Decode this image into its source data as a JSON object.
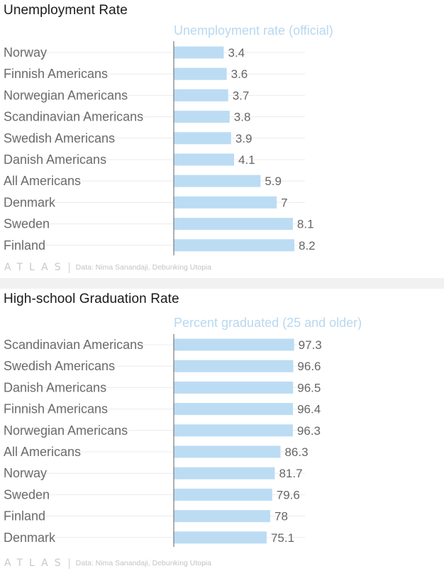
{
  "colors": {
    "bar": "#bcdcf4",
    "axis": "#7a7a7a",
    "grid": "#ececec",
    "label": "#6b6b6b",
    "value": "#666666",
    "series": "#b8d8f0"
  },
  "footer": {
    "logo": "ATLAS",
    "source": "Data: Nima Sanandaji, Debunking Utopia"
  },
  "chart_data": [
    {
      "type": "bar",
      "orientation": "horizontal",
      "title": "Unemployment Rate",
      "series": [
        {
          "name": "Unemployment rate (official)",
          "values": [
            3.4,
            3.6,
            3.7,
            3.8,
            3.9,
            4.1,
            5.9,
            7,
            8.1,
            8.2
          ],
          "value_labels": [
            "3.4",
            "3.6",
            "3.7",
            "3.8",
            "3.9",
            "4.1",
            "5.9",
            "7",
            "8.1",
            "8.2"
          ]
        }
      ],
      "categories": [
        "Norway",
        "Finnish Americans",
        "Norwegian Americans",
        "Scandinavian Americans",
        "Swedish Americans",
        "Danish Americans",
        "All Americans",
        "Denmark",
        "Sweden",
        "Finland"
      ],
      "xlim": [
        0,
        16.4
      ],
      "grid": true
    },
    {
      "type": "bar",
      "orientation": "horizontal",
      "title": "High-school Graduation Rate",
      "series": [
        {
          "name": "Percent graduated (25 and older)",
          "values": [
            97.3,
            96.6,
            96.5,
            96.4,
            96.3,
            86.3,
            81.7,
            79.6,
            78,
            75.1
          ],
          "value_labels": [
            "97.3",
            "96.6",
            "96.5",
            "96.4",
            "96.3",
            "86.3",
            "81.7",
            "79.6",
            "78",
            "75.1"
          ]
        }
      ],
      "categories": [
        "Scandinavian Americans",
        "Swedish Americans",
        "Danish Americans",
        "Finnish Americans",
        "Norwegian Americans",
        "All Americans",
        "Norway",
        "Sweden",
        "Finland",
        "Denmark"
      ],
      "xlim": [
        0,
        195
      ],
      "grid": true
    }
  ]
}
